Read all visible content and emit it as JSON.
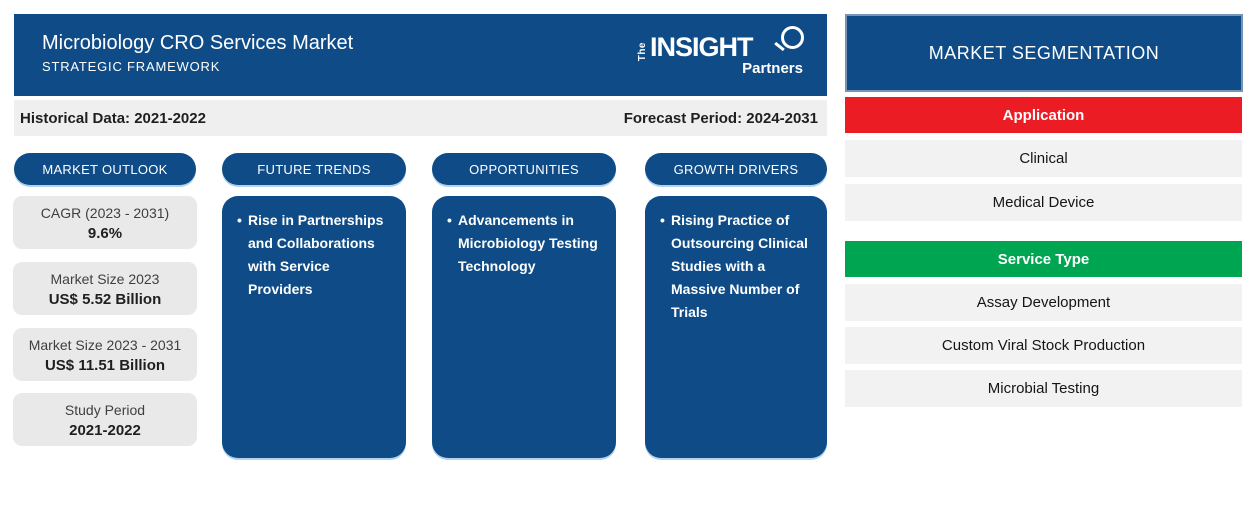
{
  "header": {
    "title": "Microbiology CRO Services Market",
    "subtitle": "STRATEGIC FRAMEWORK",
    "logo": {
      "the": "The",
      "insight": "INSIGHT",
      "partners": "Partners"
    }
  },
  "period_bar": {
    "historical": "Historical Data: 2021-2022",
    "forecast": "Forecast Period: 2024-2031"
  },
  "market_outlook": {
    "title": "MARKET OUTLOOK",
    "stats": [
      {
        "label": "CAGR (2023 - 2031)",
        "value": "9.6%"
      },
      {
        "label": "Market Size 2023",
        "value": "US$ 5.52 Billion"
      },
      {
        "label": "Market Size 2023 - 2031",
        "value": "US$ 11.51 Billion"
      },
      {
        "label": "Study Period",
        "value": "2021-2022"
      }
    ]
  },
  "columns": [
    {
      "title": "FUTURE TRENDS",
      "bullet": "Rise in Partnerships and Collaborations with Service Providers"
    },
    {
      "title": "OPPORTUNITIES",
      "bullet": "Advancements in Microbiology Testing Technology"
    },
    {
      "title": "GROWTH DRIVERS",
      "bullet": "Rising Practice of Outsourcing Clinical Studies with a Massive Number of Trials"
    }
  ],
  "segmentation": {
    "title": "MARKET SEGMENTATION",
    "groups": [
      {
        "name": "Application",
        "color": "#EC1C24",
        "items": [
          "Clinical",
          "Medical Device"
        ]
      },
      {
        "name": "Service Type",
        "color": "#00A551",
        "items": [
          "Assay Development",
          "Custom Viral Stock Production",
          "Microbial Testing"
        ]
      }
    ]
  },
  "colors": {
    "primary_blue": "#0F4C87",
    "accent_red": "#EC1C24",
    "accent_green": "#00A551",
    "bar_gray": "#EFEFEF",
    "box_gray": "#E9E9E9",
    "item_gray": "#F2F2F2"
  }
}
